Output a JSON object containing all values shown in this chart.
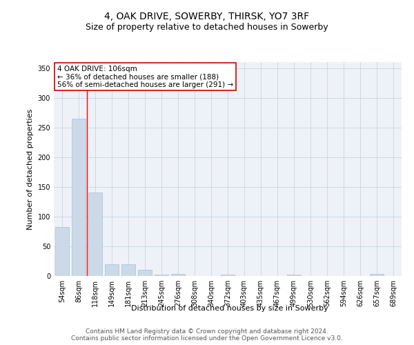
{
  "title": "4, OAK DRIVE, SOWERBY, THIRSK, YO7 3RF",
  "subtitle": "Size of property relative to detached houses in Sowerby",
  "xlabel": "Distribution of detached houses by size in Sowerby",
  "ylabel": "Number of detached properties",
  "footer_line1": "Contains HM Land Registry data © Crown copyright and database right 2024.",
  "footer_line2": "Contains public sector information licensed under the Open Government Licence v3.0.",
  "categories": [
    "54sqm",
    "86sqm",
    "118sqm",
    "149sqm",
    "181sqm",
    "213sqm",
    "245sqm",
    "276sqm",
    "308sqm",
    "340sqm",
    "372sqm",
    "403sqm",
    "435sqm",
    "467sqm",
    "499sqm",
    "530sqm",
    "562sqm",
    "594sqm",
    "626sqm",
    "657sqm",
    "689sqm"
  ],
  "values": [
    82,
    265,
    140,
    20,
    20,
    10,
    2,
    3,
    0,
    0,
    2,
    0,
    0,
    0,
    2,
    0,
    0,
    0,
    0,
    3,
    0
  ],
  "bar_color": "#ccd9e8",
  "bar_edgecolor": "#aabdd4",
  "grid_color": "#c8d4e4",
  "bg_color": "#eef2f8",
  "annotation_text": "4 OAK DRIVE: 106sqm\n← 36% of detached houses are smaller (188)\n56% of semi-detached houses are larger (291) →",
  "annotation_box_color": "#ffffff",
  "annotation_border_color": "#cc0000",
  "red_line_x": 1.5,
  "ylim": [
    0,
    360
  ],
  "yticks": [
    0,
    50,
    100,
    150,
    200,
    250,
    300,
    350
  ],
  "title_fontsize": 10,
  "subtitle_fontsize": 9,
  "axis_label_fontsize": 8,
  "tick_fontsize": 7,
  "annotation_fontsize": 7.5,
  "footer_fontsize": 6.5
}
